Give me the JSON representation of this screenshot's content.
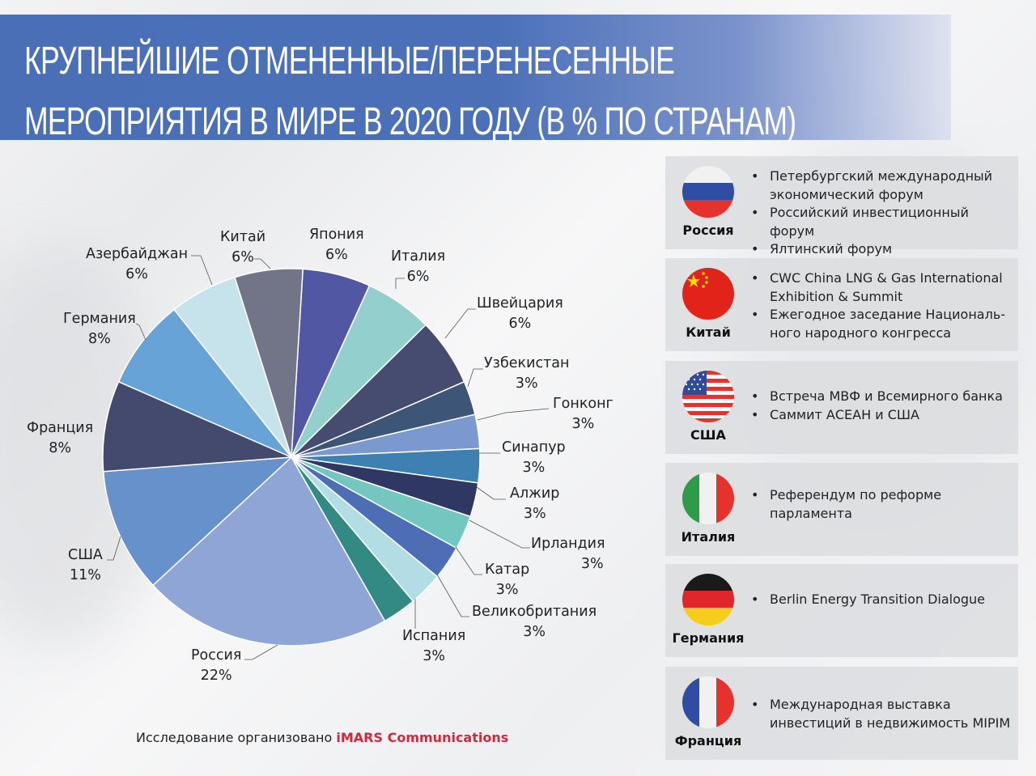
{
  "title": {
    "line1": "КРУПНЕЙШИЕ ОТМЕНЕННЫЕ/ПЕРЕНЕСЕННЫЕ",
    "line2": "МЕРОПРИЯТИЯ В МИРЕ В 2020 ГОДУ (В % ПО СТРАНАМ)"
  },
  "chart_data": {
    "type": "pie",
    "title": "Крупнейшие отмененные/перенесенные мероприятия в мире в 2020 году (в % по странам)",
    "start_angle_deg": 3.5,
    "direction": "clockwise",
    "unit": "%",
    "slices": [
      {
        "label": "Япония",
        "value": 6,
        "color": "#5257a3"
      },
      {
        "label": "Италия",
        "value": 6,
        "color": "#93d0cd"
      },
      {
        "label": "Швейцария",
        "value": 6,
        "color": "#464c70"
      },
      {
        "label": "Узбекистан",
        "value": 3,
        "color": "#3d5677"
      },
      {
        "label": "Гонконг",
        "value": 3,
        "color": "#7b98cf"
      },
      {
        "label": "Синапур",
        "value": 3,
        "color": "#3f80b3"
      },
      {
        "label": "Алжир",
        "value": 3,
        "color": "#2e3862"
      },
      {
        "label": "Ирландия",
        "value": 3,
        "color": "#74c7c1"
      },
      {
        "label": "Катар",
        "value": 3,
        "color": "#4d6db5"
      },
      {
        "label": "Великобритания",
        "value": 3,
        "color": "#b2dde4"
      },
      {
        "label": "Испания",
        "value": 3,
        "color": "#338a84"
      },
      {
        "label": "Россия",
        "value": 22,
        "color": "#8fa5d6"
      },
      {
        "label": "США",
        "value": 11,
        "color": "#6791ca"
      },
      {
        "label": "Франция",
        "value": 8,
        "color": "#434a6d"
      },
      {
        "label": "Германия",
        "value": 8,
        "color": "#67a3d6"
      },
      {
        "label": "Азербайджан",
        "value": 6,
        "color": "#c6e3eb"
      },
      {
        "label": "Китай",
        "value": 6,
        "color": "#727487"
      }
    ]
  },
  "labels": {
    "japan": {
      "name": "Япония",
      "pct": "6%"
    },
    "italy": {
      "name": "Италия",
      "pct": "6%"
    },
    "switzerland": {
      "name": "Швейцария",
      "pct": "6%"
    },
    "uzbekistan": {
      "name": "Узбекистан",
      "pct": "3%"
    },
    "hongkong": {
      "name": "Гонконг",
      "pct": "3%"
    },
    "singapore": {
      "name": "Синапур",
      "pct": "3%"
    },
    "algeria": {
      "name": "Алжир",
      "pct": "3%"
    },
    "ireland": {
      "name": "Ирландия",
      "pct": "3%"
    },
    "qatar": {
      "name": "Катар",
      "pct": "3%"
    },
    "uk": {
      "name": "Великобритания",
      "pct": "3%"
    },
    "spain": {
      "name": "Испания",
      "pct": "3%"
    },
    "russia": {
      "name": "Россия",
      "pct": "22%"
    },
    "usa": {
      "name": "США",
      "pct": "11%"
    },
    "france": {
      "name": "Франция",
      "pct": "8%"
    },
    "germany": {
      "name": "Германия",
      "pct": "8%"
    },
    "azerbaijan": {
      "name": "Азербайджан",
      "pct": "6%"
    },
    "china": {
      "name": "Китай",
      "pct": "6%"
    }
  },
  "cards": [
    {
      "country": "Россия",
      "flag": "russia-flag",
      "events": [
        "Петербургский международный экономический форум",
        "Российский инвестиционный форум",
        "Ялтинский форум"
      ]
    },
    {
      "country": "Китай",
      "flag": "china-flag",
      "events": [
        "CWC China LNG & Gas International Exhibition & Summit",
        "Ежегодное заседание Националь-ного народного конгресса"
      ]
    },
    {
      "country": "США",
      "flag": "usa-flag",
      "events": [
        "Встреча МВФ и Всемирного банка",
        "Саммит АСЕАН и США"
      ]
    },
    {
      "country": "Италия",
      "flag": "italy-flag",
      "events": [
        "Референдум по реформе парламента"
      ]
    },
    {
      "country": "Германия",
      "flag": "germany-flag",
      "events": [
        "Berlin Energy Transition Dialogue"
      ]
    },
    {
      "country": "Франция",
      "flag": "france-flag",
      "events": [
        "Международная выставка инвестиций в недвижимость MIPIM"
      ]
    }
  ],
  "footer": {
    "text": "Исследование организовано ",
    "brand": "iMARS Communications",
    "brand_color": "#d0293d"
  },
  "colors": {
    "title_band": "#4a6fb6"
  }
}
